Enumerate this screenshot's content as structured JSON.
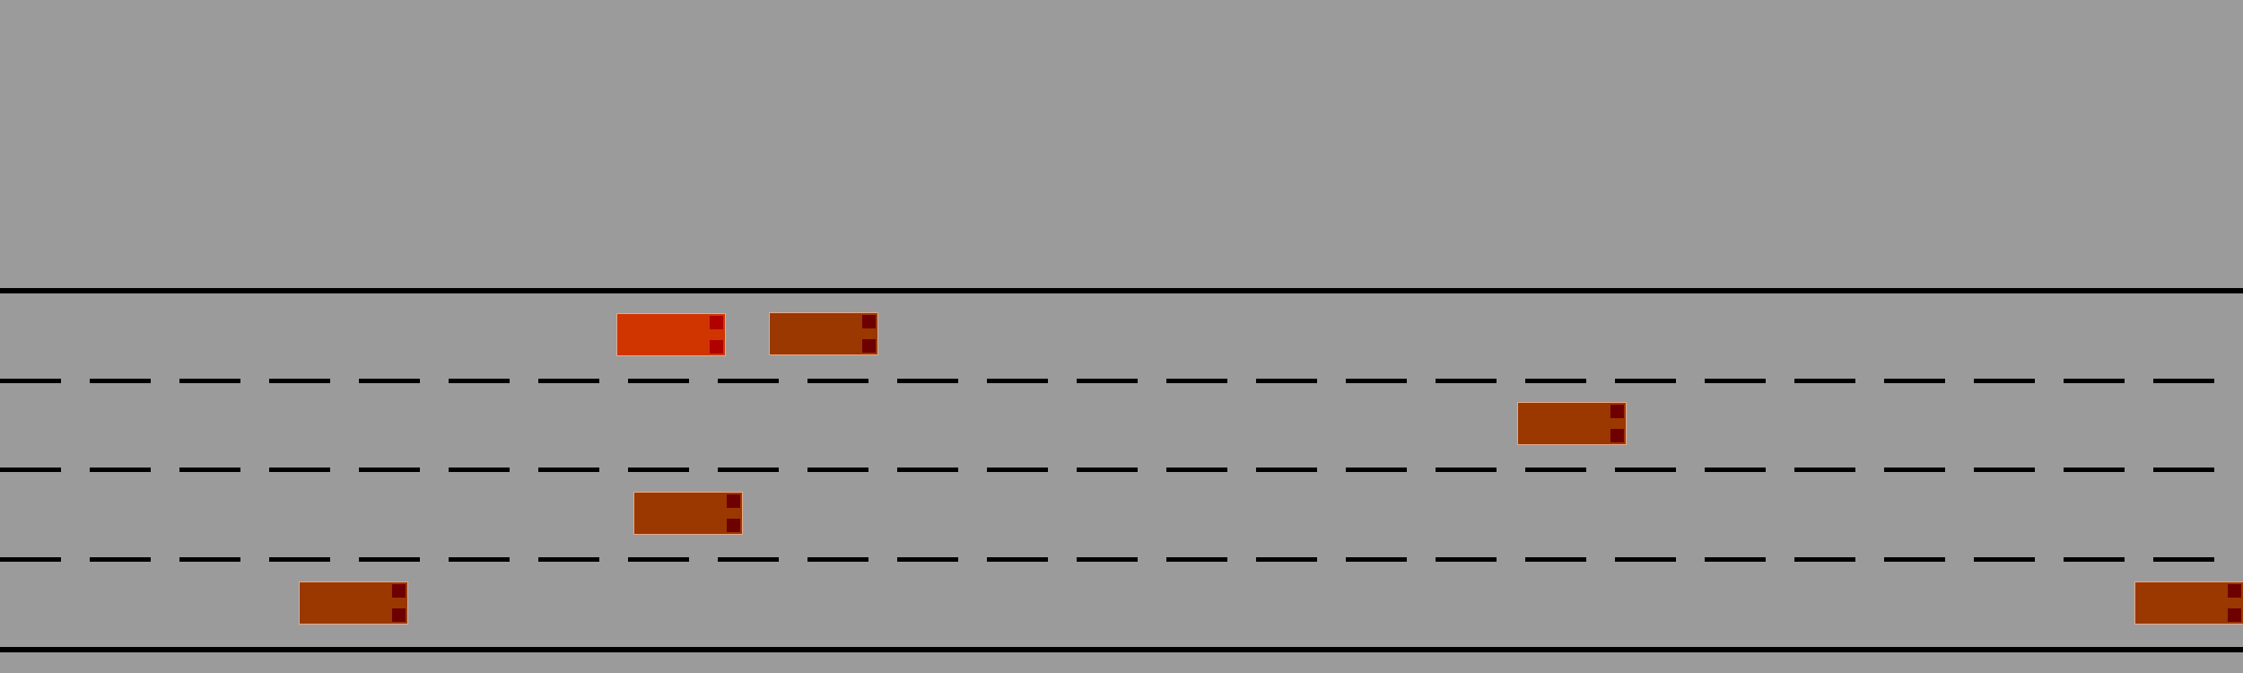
{
  "road": {
    "background_color": "#9b9b9b",
    "line_color": "#000000",
    "lanes": 4
  },
  "colors": {
    "ego_body": "#d03500",
    "ego_light": "#b00000",
    "other_body": "#9a3800",
    "other_light": "#6e0000",
    "car_outline": "#e9a88a"
  },
  "vehicles": [
    {
      "id": "ego",
      "lane": 1,
      "role": "ego"
    },
    {
      "id": "v1",
      "lane": 1,
      "role": "other"
    },
    {
      "id": "v2",
      "lane": 2,
      "role": "other"
    },
    {
      "id": "v3",
      "lane": 3,
      "role": "other"
    },
    {
      "id": "v4",
      "lane": 4,
      "role": "other"
    },
    {
      "id": "v5",
      "lane": 4,
      "role": "other"
    }
  ]
}
